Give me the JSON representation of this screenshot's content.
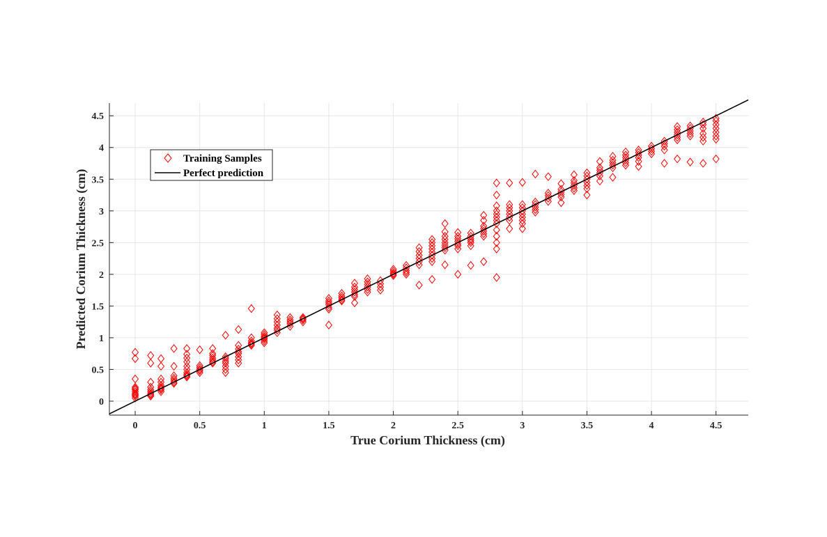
{
  "chart_data": {
    "type": "scatter",
    "xlabel": "True Corium Thickness (cm)",
    "ylabel": "Predicted Corium Thickness (cm)",
    "xlim": [
      -0.2,
      4.75
    ],
    "ylim": [
      -0.22,
      4.7
    ],
    "xticks": [
      "0",
      "0.5",
      "1",
      "1.5",
      "2",
      "2.5",
      "3",
      "3.5",
      "4",
      "4.5"
    ],
    "yticks": [
      "0",
      "0.5",
      "1",
      "1.5",
      "2",
      "2.5",
      "3",
      "3.5",
      "4",
      "4.5"
    ],
    "grid": true,
    "legend_location": "upper-left",
    "colors": {
      "samples": "#ff0000",
      "perfect": "#000000",
      "grid": "#e6e6e6",
      "axes": "#262626"
    },
    "series": [
      {
        "name": "Training Samples",
        "marker": "diamond",
        "points": [
          [
            0,
            0.05
          ],
          [
            0,
            0.08
          ],
          [
            0,
            0.1
          ],
          [
            0,
            0.12
          ],
          [
            0,
            0.15
          ],
          [
            0,
            0.18
          ],
          [
            0,
            0.2
          ],
          [
            0,
            0.22
          ],
          [
            0,
            0.35
          ],
          [
            0,
            0.67
          ],
          [
            0,
            0.77
          ],
          [
            0.12,
            0.08
          ],
          [
            0.12,
            0.1
          ],
          [
            0.12,
            0.12
          ],
          [
            0.12,
            0.15
          ],
          [
            0.12,
            0.18
          ],
          [
            0.12,
            0.22
          ],
          [
            0.12,
            0.3
          ],
          [
            0.12,
            0.6
          ],
          [
            0.12,
            0.72
          ],
          [
            0.2,
            0.15
          ],
          [
            0.2,
            0.18
          ],
          [
            0.2,
            0.2
          ],
          [
            0.2,
            0.22
          ],
          [
            0.2,
            0.25
          ],
          [
            0.2,
            0.3
          ],
          [
            0.2,
            0.35
          ],
          [
            0.2,
            0.55
          ],
          [
            0.2,
            0.67
          ],
          [
            0.3,
            0.28
          ],
          [
            0.3,
            0.3
          ],
          [
            0.3,
            0.33
          ],
          [
            0.3,
            0.36
          ],
          [
            0.3,
            0.4
          ],
          [
            0.3,
            0.55
          ],
          [
            0.3,
            0.83
          ],
          [
            0.4,
            0.38
          ],
          [
            0.4,
            0.4
          ],
          [
            0.4,
            0.42
          ],
          [
            0.4,
            0.45
          ],
          [
            0.4,
            0.5
          ],
          [
            0.4,
            0.55
          ],
          [
            0.4,
            0.62
          ],
          [
            0.4,
            0.68
          ],
          [
            0.4,
            0.74
          ],
          [
            0.4,
            0.83
          ],
          [
            0.5,
            0.45
          ],
          [
            0.5,
            0.48
          ],
          [
            0.5,
            0.5
          ],
          [
            0.5,
            0.53
          ],
          [
            0.5,
            0.56
          ],
          [
            0.5,
            0.81
          ],
          [
            0.6,
            0.6
          ],
          [
            0.6,
            0.62
          ],
          [
            0.6,
            0.65
          ],
          [
            0.6,
            0.68
          ],
          [
            0.6,
            0.72
          ],
          [
            0.6,
            0.75
          ],
          [
            0.6,
            0.83
          ],
          [
            0.7,
            0.45
          ],
          [
            0.7,
            0.5
          ],
          [
            0.7,
            0.55
          ],
          [
            0.7,
            0.6
          ],
          [
            0.7,
            0.63
          ],
          [
            0.7,
            0.67
          ],
          [
            0.7,
            0.7
          ],
          [
            0.7,
            1.04
          ],
          [
            0.8,
            0.6
          ],
          [
            0.8,
            0.65
          ],
          [
            0.8,
            0.7
          ],
          [
            0.8,
            0.75
          ],
          [
            0.8,
            0.78
          ],
          [
            0.8,
            0.82
          ],
          [
            0.8,
            0.88
          ],
          [
            0.8,
            1.13
          ],
          [
            0.9,
            0.88
          ],
          [
            0.9,
            0.9
          ],
          [
            0.9,
            0.92
          ],
          [
            0.9,
            0.95
          ],
          [
            0.9,
            1.0
          ],
          [
            0.9,
            1.46
          ],
          [
            1,
            0.92
          ],
          [
            1,
            0.95
          ],
          [
            1,
            0.98
          ],
          [
            1,
            1.0
          ],
          [
            1,
            1.02
          ],
          [
            1,
            1.05
          ],
          [
            1,
            1.08
          ],
          [
            1.1,
            1.08
          ],
          [
            1.1,
            1.12
          ],
          [
            1.1,
            1.15
          ],
          [
            1.1,
            1.2
          ],
          [
            1.1,
            1.25
          ],
          [
            1.1,
            1.3
          ],
          [
            1.1,
            1.36
          ],
          [
            1.2,
            1.18
          ],
          [
            1.2,
            1.22
          ],
          [
            1.2,
            1.25
          ],
          [
            1.2,
            1.28
          ],
          [
            1.2,
            1.32
          ],
          [
            1.3,
            1.25
          ],
          [
            1.3,
            1.28
          ],
          [
            1.3,
            1.3
          ],
          [
            1.3,
            1.32
          ],
          [
            1.5,
            1.2
          ],
          [
            1.5,
            1.45
          ],
          [
            1.5,
            1.48
          ],
          [
            1.5,
            1.52
          ],
          [
            1.5,
            1.55
          ],
          [
            1.5,
            1.58
          ],
          [
            1.5,
            1.62
          ],
          [
            1.6,
            1.58
          ],
          [
            1.6,
            1.6
          ],
          [
            1.6,
            1.63
          ],
          [
            1.6,
            1.66
          ],
          [
            1.6,
            1.7
          ],
          [
            1.7,
            1.55
          ],
          [
            1.7,
            1.65
          ],
          [
            1.7,
            1.68
          ],
          [
            1.7,
            1.72
          ],
          [
            1.7,
            1.76
          ],
          [
            1.7,
            1.8
          ],
          [
            1.7,
            1.86
          ],
          [
            1.8,
            1.72
          ],
          [
            1.8,
            1.76
          ],
          [
            1.8,
            1.8
          ],
          [
            1.8,
            1.84
          ],
          [
            1.8,
            1.88
          ],
          [
            1.8,
            1.93
          ],
          [
            1.9,
            1.75
          ],
          [
            1.9,
            1.8
          ],
          [
            1.9,
            1.85
          ],
          [
            1.9,
            1.9
          ],
          [
            2,
            1.98
          ],
          [
            2,
            2.0
          ],
          [
            2,
            2.02
          ],
          [
            2,
            2.05
          ],
          [
            2,
            2.08
          ],
          [
            2.1,
            2.0
          ],
          [
            2.1,
            2.03
          ],
          [
            2.1,
            2.06
          ],
          [
            2.1,
            2.1
          ],
          [
            2.1,
            2.14
          ],
          [
            2.2,
            1.83
          ],
          [
            2.2,
            2.15
          ],
          [
            2.2,
            2.2
          ],
          [
            2.2,
            2.25
          ],
          [
            2.2,
            2.3
          ],
          [
            2.2,
            2.36
          ],
          [
            2.2,
            2.42
          ],
          [
            2.3,
            1.92
          ],
          [
            2.3,
            2.2
          ],
          [
            2.3,
            2.25
          ],
          [
            2.3,
            2.3
          ],
          [
            2.3,
            2.35
          ],
          [
            2.3,
            2.4
          ],
          [
            2.3,
            2.45
          ],
          [
            2.3,
            2.5
          ],
          [
            2.3,
            2.55
          ],
          [
            2.4,
            2.15
          ],
          [
            2.4,
            2.38
          ],
          [
            2.4,
            2.42
          ],
          [
            2.4,
            2.46
          ],
          [
            2.4,
            2.5
          ],
          [
            2.4,
            2.55
          ],
          [
            2.4,
            2.6
          ],
          [
            2.4,
            2.67
          ],
          [
            2.4,
            2.8
          ],
          [
            2.5,
            2.0
          ],
          [
            2.5,
            2.4
          ],
          [
            2.5,
            2.45
          ],
          [
            2.5,
            2.48
          ],
          [
            2.5,
            2.52
          ],
          [
            2.5,
            2.56
          ],
          [
            2.5,
            2.6
          ],
          [
            2.5,
            2.66
          ],
          [
            2.6,
            2.14
          ],
          [
            2.6,
            2.45
          ],
          [
            2.6,
            2.5
          ],
          [
            2.6,
            2.53
          ],
          [
            2.6,
            2.56
          ],
          [
            2.6,
            2.6
          ],
          [
            2.6,
            2.65
          ],
          [
            2.7,
            2.2
          ],
          [
            2.7,
            2.6
          ],
          [
            2.7,
            2.64
          ],
          [
            2.7,
            2.68
          ],
          [
            2.7,
            2.72
          ],
          [
            2.7,
            2.76
          ],
          [
            2.7,
            2.85
          ],
          [
            2.7,
            2.93
          ],
          [
            2.8,
            1.95
          ],
          [
            2.8,
            2.4
          ],
          [
            2.8,
            2.5
          ],
          [
            2.8,
            2.6
          ],
          [
            2.8,
            2.7
          ],
          [
            2.8,
            2.8
          ],
          [
            2.8,
            2.85
          ],
          [
            2.8,
            2.9
          ],
          [
            2.8,
            2.95
          ],
          [
            2.8,
            3.0
          ],
          [
            2.8,
            3.08
          ],
          [
            2.8,
            3.25
          ],
          [
            2.8,
            3.44
          ],
          [
            2.9,
            2.72
          ],
          [
            2.9,
            2.85
          ],
          [
            2.9,
            2.9
          ],
          [
            2.9,
            2.95
          ],
          [
            2.9,
            3.0
          ],
          [
            2.9,
            3.05
          ],
          [
            2.9,
            3.1
          ],
          [
            2.9,
            3.44
          ],
          [
            3,
            2.72
          ],
          [
            3,
            2.8
          ],
          [
            3,
            2.85
          ],
          [
            3,
            2.9
          ],
          [
            3,
            2.95
          ],
          [
            3,
            3.0
          ],
          [
            3,
            3.05
          ],
          [
            3,
            3.1
          ],
          [
            3,
            3.45
          ],
          [
            3.1,
            2.98
          ],
          [
            3.1,
            3.02
          ],
          [
            3.1,
            3.06
          ],
          [
            3.1,
            3.1
          ],
          [
            3.1,
            3.14
          ],
          [
            3.1,
            3.58
          ],
          [
            3.2,
            3.15
          ],
          [
            3.2,
            3.2
          ],
          [
            3.2,
            3.24
          ],
          [
            3.2,
            3.28
          ],
          [
            3.2,
            3.54
          ],
          [
            3.3,
            3.13
          ],
          [
            3.3,
            3.22
          ],
          [
            3.3,
            3.26
          ],
          [
            3.3,
            3.3
          ],
          [
            3.3,
            3.34
          ],
          [
            3.3,
            3.43
          ],
          [
            3.4,
            3.32
          ],
          [
            3.4,
            3.36
          ],
          [
            3.4,
            3.4
          ],
          [
            3.4,
            3.44
          ],
          [
            3.4,
            3.48
          ],
          [
            3.4,
            3.57
          ],
          [
            3.5,
            3.25
          ],
          [
            3.5,
            3.35
          ],
          [
            3.5,
            3.4
          ],
          [
            3.5,
            3.45
          ],
          [
            3.5,
            3.5
          ],
          [
            3.5,
            3.55
          ],
          [
            3.5,
            3.6
          ],
          [
            3.6,
            3.47
          ],
          [
            3.6,
            3.55
          ],
          [
            3.6,
            3.6
          ],
          [
            3.6,
            3.64
          ],
          [
            3.6,
            3.68
          ],
          [
            3.6,
            3.78
          ],
          [
            3.7,
            3.53
          ],
          [
            3.7,
            3.68
          ],
          [
            3.7,
            3.72
          ],
          [
            3.7,
            3.76
          ],
          [
            3.7,
            3.8
          ],
          [
            3.7,
            3.86
          ],
          [
            3.8,
            3.72
          ],
          [
            3.8,
            3.76
          ],
          [
            3.8,
            3.8
          ],
          [
            3.8,
            3.84
          ],
          [
            3.8,
            3.88
          ],
          [
            3.8,
            3.93
          ],
          [
            3.9,
            3.7
          ],
          [
            3.9,
            3.78
          ],
          [
            3.9,
            3.84
          ],
          [
            3.9,
            3.88
          ],
          [
            3.9,
            3.92
          ],
          [
            3.9,
            3.96
          ],
          [
            4,
            3.9
          ],
          [
            4,
            3.94
          ],
          [
            4,
            3.98
          ],
          [
            4,
            4.02
          ],
          [
            4.1,
            3.75
          ],
          [
            4.1,
            3.96
          ],
          [
            4.1,
            4.02
          ],
          [
            4.1,
            4.06
          ],
          [
            4.1,
            4.1
          ],
          [
            4.2,
            3.82
          ],
          [
            4.2,
            4.12
          ],
          [
            4.2,
            4.16
          ],
          [
            4.2,
            4.2
          ],
          [
            4.2,
            4.24
          ],
          [
            4.2,
            4.28
          ],
          [
            4.2,
            4.33
          ],
          [
            4.3,
            3.77
          ],
          [
            4.3,
            4.18
          ],
          [
            4.3,
            4.22
          ],
          [
            4.3,
            4.26
          ],
          [
            4.3,
            4.3
          ],
          [
            4.3,
            4.34
          ],
          [
            4.4,
            3.75
          ],
          [
            4.4,
            4.1
          ],
          [
            4.4,
            4.16
          ],
          [
            4.4,
            4.22
          ],
          [
            4.4,
            4.3
          ],
          [
            4.4,
            4.36
          ],
          [
            4.4,
            4.4
          ],
          [
            4.5,
            3.82
          ],
          [
            4.5,
            4.13
          ],
          [
            4.5,
            4.18
          ],
          [
            4.5,
            4.24
          ],
          [
            4.5,
            4.3
          ],
          [
            4.5,
            4.36
          ],
          [
            4.5,
            4.42
          ],
          [
            4.5,
            4.46
          ]
        ]
      },
      {
        "name": "Perfect prediction",
        "line": [
          [
            -0.2,
            -0.2
          ],
          [
            4.75,
            4.75
          ]
        ]
      }
    ]
  }
}
